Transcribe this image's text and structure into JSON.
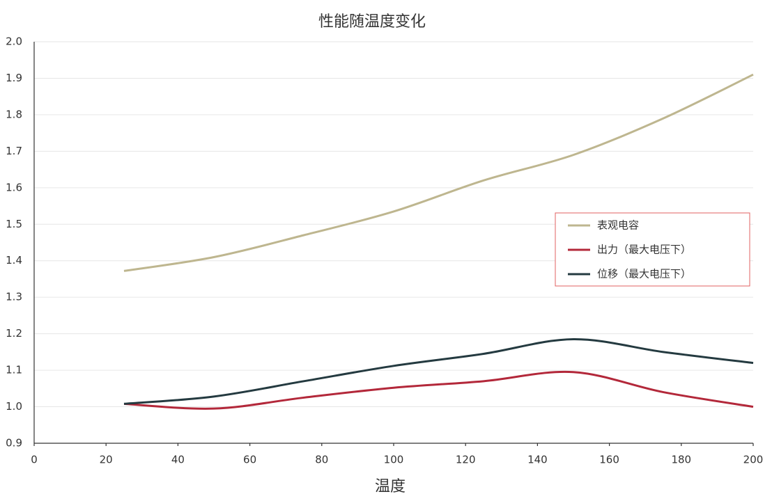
{
  "chart_data": {
    "type": "line",
    "title": "性能随温度变化",
    "x_label": "温度",
    "x": [
      25,
      50,
      75,
      100,
      125,
      150,
      175,
      200
    ],
    "series": [
      {
        "name": "表观电容",
        "color": "#beb68f",
        "values": [
          1.372,
          1.41,
          1.47,
          1.535,
          1.62,
          1.69,
          1.79,
          1.91
        ]
      },
      {
        "name": "出力（最大电压下）",
        "color": "#b3283a",
        "values": [
          1.008,
          0.995,
          1.025,
          1.052,
          1.07,
          1.095,
          1.04,
          1.0
        ]
      },
      {
        "name": "位移（最大电压下）",
        "color": "#243a40",
        "values": [
          1.008,
          1.028,
          1.07,
          1.112,
          1.145,
          1.185,
          1.15,
          1.12
        ]
      }
    ],
    "xlim": [
      0,
      200
    ],
    "xticks": [
      0,
      20,
      40,
      60,
      80,
      100,
      120,
      140,
      160,
      180,
      200
    ],
    "ylim": [
      0.9,
      2.0
    ],
    "yticks": [
      0.9,
      {
        "value": 1,
        "label": "1.0"
      },
      1.1,
      1.2,
      1.3,
      1.4,
      1.5,
      1.6,
      1.7,
      1.8,
      1.9,
      {
        "value": 2,
        "label": "2.0"
      }
    ],
    "grid": true,
    "legend": "right"
  }
}
